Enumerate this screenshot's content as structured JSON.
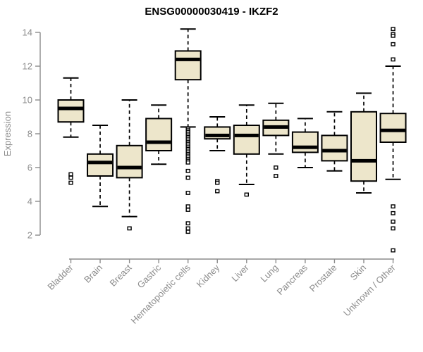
{
  "chart_data": {
    "type": "boxplot",
    "title": "ENSG00000030419 - IKZF2",
    "ylabel": "Expression",
    "xlabel": "",
    "ylim": [
      2,
      14
    ],
    "yticks": [
      2,
      4,
      6,
      8,
      10,
      12,
      14
    ],
    "grid": false,
    "legend": null,
    "x_tick_rotation": 45,
    "colors": {
      "box_fill": "#EDE6CB",
      "box_stroke": "#000000",
      "median": "#000000",
      "axis": "#8C8C8C",
      "title": "#000000",
      "background": "#FFFFFF"
    },
    "categories": [
      "Bladder",
      "Brain",
      "Breast",
      "Gastric",
      "Hematopoietic cells",
      "Kidney",
      "Liver",
      "Lung",
      "Pancreas",
      "Prostate",
      "Skin",
      "Unknown / Other"
    ],
    "series": [
      {
        "category": "Bladder",
        "whisker_low": 7.8,
        "q1": 8.7,
        "median": 9.5,
        "q3": 10.0,
        "whisker_high": 11.3,
        "outliers": [
          5.6,
          5.4,
          5.1
        ]
      },
      {
        "category": "Brain",
        "whisker_low": 3.7,
        "q1": 5.5,
        "median": 6.3,
        "q3": 6.8,
        "whisker_high": 8.5,
        "outliers": []
      },
      {
        "category": "Breast",
        "whisker_low": 3.1,
        "q1": 5.4,
        "median": 6.0,
        "q3": 7.3,
        "whisker_high": 10.0,
        "outliers": [
          2.4
        ]
      },
      {
        "category": "Gastric",
        "whisker_low": 6.2,
        "q1": 7.0,
        "median": 7.5,
        "q3": 8.9,
        "whisker_high": 9.7,
        "outliers": []
      },
      {
        "category": "Hematopoietic cells",
        "whisker_low": 8.4,
        "q1": 11.2,
        "median": 12.4,
        "q3": 12.9,
        "whisker_high": 14.2,
        "outliers": [
          8.3,
          8.2,
          8.1,
          8.0,
          7.9,
          7.8,
          7.7,
          7.6,
          7.5,
          7.4,
          7.3,
          7.2,
          7.1,
          7.0,
          6.9,
          6.8,
          6.7,
          6.6,
          6.5,
          6.4,
          6.3,
          5.8,
          5.4,
          4.5,
          3.7,
          3.5,
          2.7,
          2.4,
          2.2
        ]
      },
      {
        "category": "Kidney",
        "whisker_low": 7.0,
        "q1": 7.7,
        "median": 7.9,
        "q3": 8.4,
        "whisker_high": 9.0,
        "outliers": [
          5.2,
          5.1,
          4.6
        ]
      },
      {
        "category": "Liver",
        "whisker_low": 5.0,
        "q1": 6.8,
        "median": 7.9,
        "q3": 8.5,
        "whisker_high": 9.7,
        "outliers": [
          4.4
        ]
      },
      {
        "category": "Lung",
        "whisker_low": 6.8,
        "q1": 7.9,
        "median": 8.4,
        "q3": 8.8,
        "whisker_high": 9.8,
        "outliers": [
          6.0,
          5.5
        ]
      },
      {
        "category": "Pancreas",
        "whisker_low": 6.0,
        "q1": 6.9,
        "median": 7.2,
        "q3": 8.1,
        "whisker_high": 8.9,
        "outliers": []
      },
      {
        "category": "Prostate",
        "whisker_low": 5.8,
        "q1": 6.4,
        "median": 7.0,
        "q3": 7.9,
        "whisker_high": 9.3,
        "outliers": []
      },
      {
        "category": "Skin",
        "whisker_low": 4.5,
        "q1": 5.2,
        "median": 6.4,
        "q3": 9.3,
        "whisker_high": 10.4,
        "outliers": []
      },
      {
        "category": "Unknown / Other",
        "whisker_low": 5.3,
        "q1": 7.5,
        "median": 8.2,
        "q3": 9.2,
        "whisker_high": 12.0,
        "outliers": [
          14.2,
          13.9,
          13.8,
          13.3,
          12.4,
          3.7,
          3.3,
          2.8,
          2.4,
          1.1
        ]
      }
    ]
  }
}
